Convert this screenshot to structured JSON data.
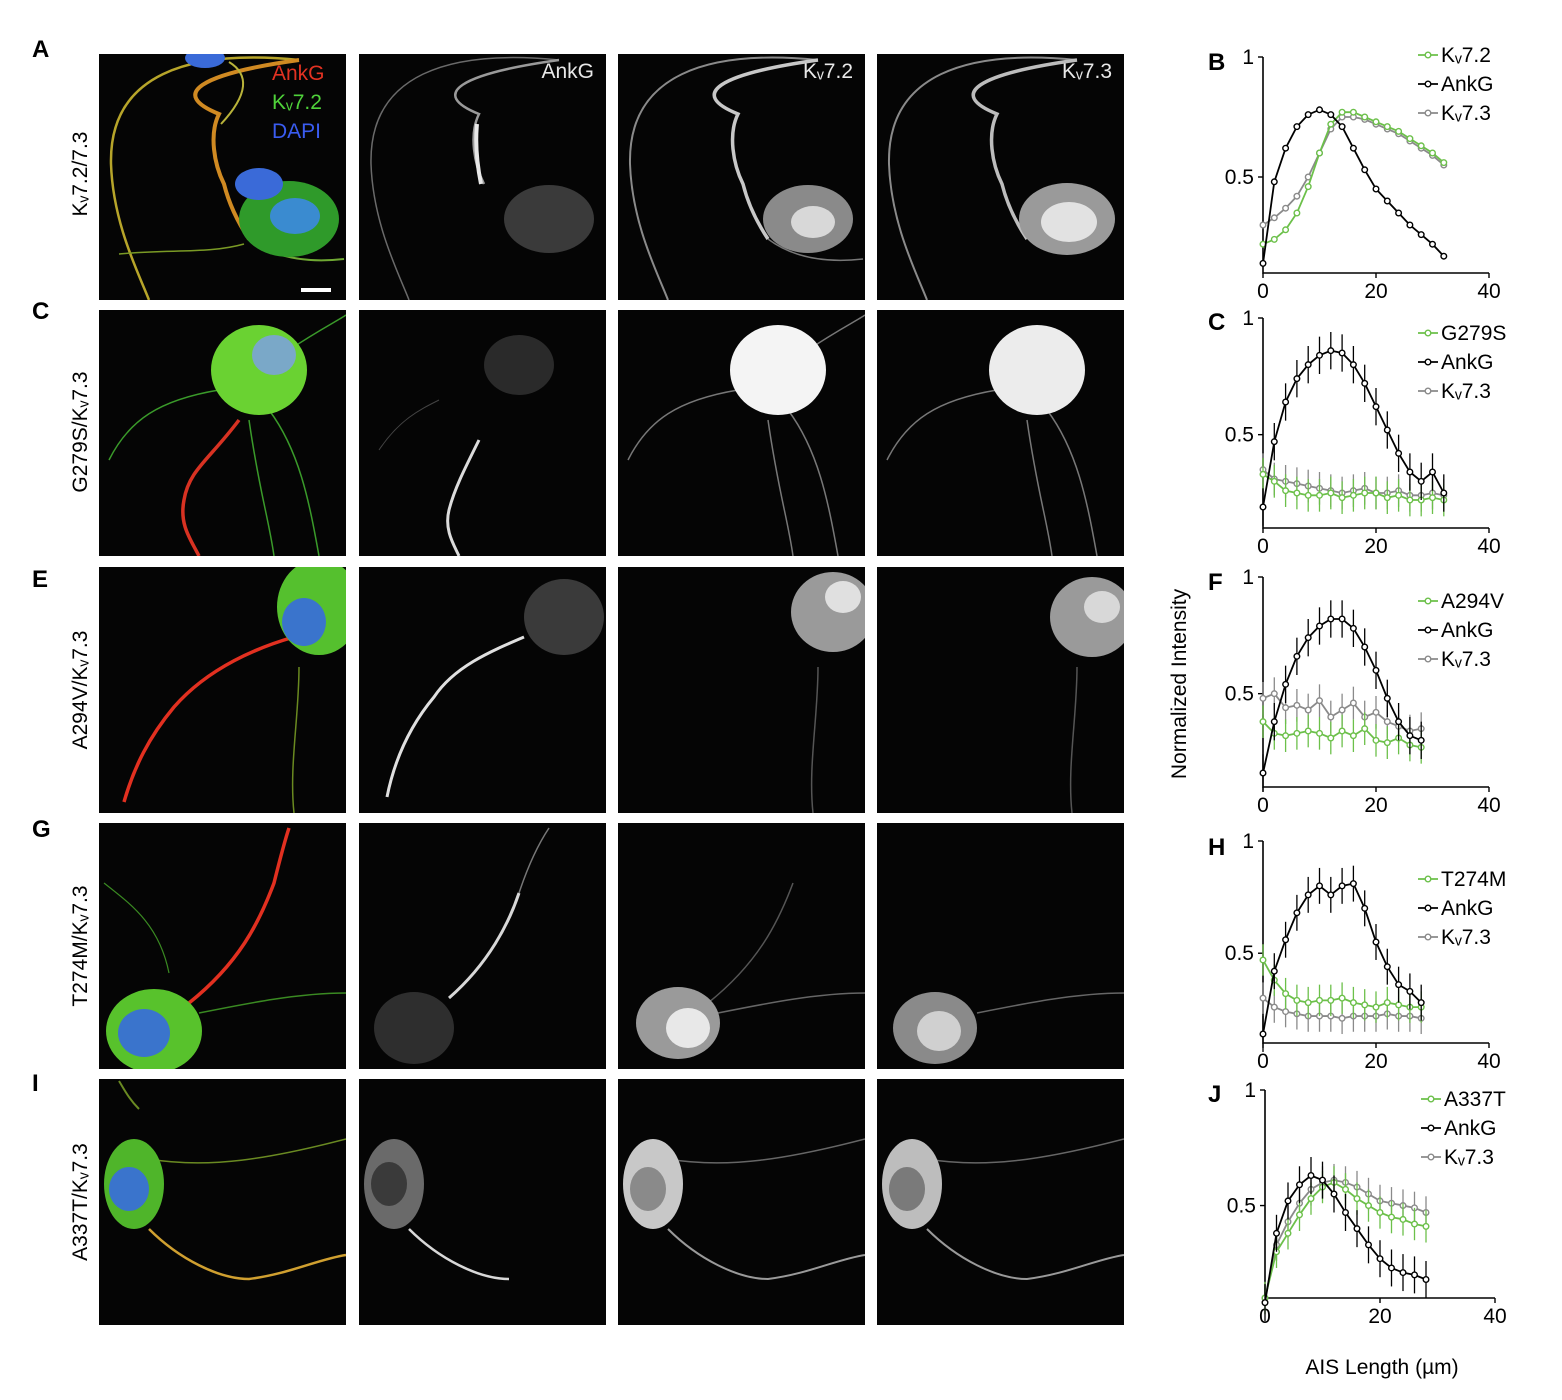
{
  "rows": [
    {
      "letter": "A",
      "label": "Kᵥ7.2/7.3"
    },
    {
      "letter": "C",
      "label": "G279S/Kᵥ7.3"
    },
    {
      "letter": "E",
      "label": "A294V/Kᵥ7.3"
    },
    {
      "letter": "G",
      "label": "T274M/Kᵥ7.3"
    },
    {
      "letter": "I",
      "label": "A337T/Kᵥ7.3"
    }
  ],
  "channel_labels": {
    "ankg": "AnkG",
    "kv72": "Kᵥ7.2",
    "kv73": "Kᵥ7.3"
  },
  "merge_legend": {
    "ankg": "AnkG",
    "kv72": "Kᵥ7.2",
    "dapi": "DAPI"
  },
  "colors": {
    "ankg": "#000000",
    "kv72": "#6cc04a",
    "kv73": "#8a8a8a",
    "red": "#e23222",
    "green": "#4fd23a",
    "blue": "#3a5cf0"
  },
  "axis": {
    "ylabel": "Normalized Intensity",
    "xlabel": "AIS Length (µm)"
  },
  "chart_data": [
    {
      "type": "line",
      "panel": "B",
      "xlim": [
        0,
        40
      ],
      "ylim": [
        0.1,
        1
      ],
      "xticks": [
        0,
        20,
        40
      ],
      "yticks": [
        0.5,
        1
      ],
      "legend": "top-right",
      "series": [
        {
          "name": "Kᵥ7.2",
          "color": "#6cc04a",
          "x": [
            0,
            2,
            4,
            6,
            8,
            10,
            12,
            14,
            16,
            18,
            20,
            22,
            24,
            26,
            28,
            30,
            32
          ],
          "y": [
            0.22,
            0.24,
            0.28,
            0.35,
            0.46,
            0.6,
            0.72,
            0.77,
            0.77,
            0.75,
            0.73,
            0.71,
            0.69,
            0.66,
            0.63,
            0.6,
            0.56
          ]
        },
        {
          "name": "AnkG",
          "color": "#000000",
          "x": [
            0,
            2,
            4,
            6,
            8,
            10,
            12,
            14,
            16,
            18,
            20,
            22,
            24,
            26,
            28,
            30,
            32
          ],
          "y": [
            0.14,
            0.48,
            0.62,
            0.71,
            0.76,
            0.78,
            0.76,
            0.71,
            0.62,
            0.53,
            0.45,
            0.4,
            0.35,
            0.3,
            0.26,
            0.22,
            0.17
          ]
        },
        {
          "name": "Kᵥ7.3",
          "color": "#8a8a8a",
          "x": [
            0,
            2,
            4,
            6,
            8,
            10,
            12,
            14,
            16,
            18,
            20,
            22,
            24,
            26,
            28,
            30,
            32
          ],
          "y": [
            0.3,
            0.33,
            0.37,
            0.42,
            0.5,
            0.6,
            0.7,
            0.75,
            0.75,
            0.74,
            0.72,
            0.7,
            0.68,
            0.65,
            0.62,
            0.59,
            0.55
          ]
        }
      ]
    },
    {
      "type": "line",
      "panel": "C",
      "xlim": [
        0,
        40
      ],
      "ylim": [
        0.1,
        1
      ],
      "xticks": [
        0,
        20,
        40
      ],
      "yticks": [
        0.5,
        1
      ],
      "legend": "top-right",
      "series": [
        {
          "name": "G279S",
          "color": "#6cc04a",
          "x": [
            0,
            2,
            4,
            6,
            8,
            10,
            12,
            14,
            16,
            18,
            20,
            22,
            24,
            26,
            28,
            30,
            32
          ],
          "y": [
            0.33,
            0.3,
            0.26,
            0.25,
            0.24,
            0.24,
            0.25,
            0.23,
            0.24,
            0.25,
            0.25,
            0.23,
            0.24,
            0.22,
            0.22,
            0.23,
            0.22
          ]
        },
        {
          "name": "AnkG",
          "color": "#000000",
          "x": [
            0,
            2,
            4,
            6,
            8,
            10,
            12,
            14,
            16,
            18,
            20,
            22,
            24,
            26,
            28,
            30,
            32
          ],
          "y": [
            0.19,
            0.47,
            0.64,
            0.74,
            0.8,
            0.84,
            0.86,
            0.85,
            0.8,
            0.72,
            0.62,
            0.52,
            0.42,
            0.34,
            0.3,
            0.34,
            0.25
          ]
        },
        {
          "name": "Kᵥ7.3",
          "color": "#8a8a8a",
          "x": [
            0,
            2,
            4,
            6,
            8,
            10,
            12,
            14,
            16,
            18,
            20,
            22,
            24,
            26,
            28,
            30,
            32
          ],
          "y": [
            0.35,
            0.31,
            0.3,
            0.29,
            0.28,
            0.27,
            0.26,
            0.25,
            0.26,
            0.27,
            0.25,
            0.25,
            0.26,
            0.24,
            0.24,
            0.25,
            0.24
          ]
        }
      ]
    },
    {
      "type": "line",
      "panel": "F",
      "xlim": [
        0,
        40
      ],
      "ylim": [
        0.1,
        1
      ],
      "xticks": [
        0,
        20,
        40
      ],
      "yticks": [
        0.5,
        1
      ],
      "legend": "top-right",
      "series": [
        {
          "name": "A294V",
          "color": "#6cc04a",
          "x": [
            0,
            2,
            4,
            6,
            8,
            10,
            12,
            14,
            16,
            18,
            20,
            22,
            24,
            26,
            28
          ],
          "y": [
            0.38,
            0.33,
            0.32,
            0.33,
            0.34,
            0.33,
            0.31,
            0.34,
            0.32,
            0.35,
            0.3,
            0.29,
            0.31,
            0.28,
            0.27
          ]
        },
        {
          "name": "AnkG",
          "color": "#000000",
          "x": [
            0,
            2,
            4,
            6,
            8,
            10,
            12,
            14,
            16,
            18,
            20,
            22,
            24,
            26,
            28
          ],
          "y": [
            0.16,
            0.38,
            0.54,
            0.66,
            0.74,
            0.79,
            0.82,
            0.82,
            0.78,
            0.7,
            0.6,
            0.48,
            0.38,
            0.32,
            0.3
          ]
        },
        {
          "name": "Kᵥ7.3",
          "color": "#8a8a8a",
          "x": [
            0,
            2,
            4,
            6,
            8,
            10,
            12,
            14,
            16,
            18,
            20,
            22,
            24,
            26,
            28
          ],
          "y": [
            0.48,
            0.5,
            0.44,
            0.45,
            0.43,
            0.47,
            0.4,
            0.43,
            0.46,
            0.4,
            0.42,
            0.38,
            0.36,
            0.34,
            0.35
          ]
        }
      ]
    },
    {
      "type": "line",
      "panel": "H",
      "xlim": [
        0,
        40
      ],
      "ylim": [
        0.1,
        1
      ],
      "xticks": [
        0,
        20,
        40
      ],
      "yticks": [
        0.5,
        1
      ],
      "legend": "top-right",
      "series": [
        {
          "name": "T274M",
          "color": "#6cc04a",
          "x": [
            0,
            2,
            4,
            6,
            8,
            10,
            12,
            14,
            16,
            18,
            20,
            22,
            24,
            26,
            28
          ],
          "y": [
            0.47,
            0.38,
            0.32,
            0.29,
            0.28,
            0.29,
            0.29,
            0.3,
            0.28,
            0.27,
            0.26,
            0.28,
            0.27,
            0.26,
            0.26
          ]
        },
        {
          "name": "AnkG",
          "color": "#000000",
          "x": [
            0,
            2,
            4,
            6,
            8,
            10,
            12,
            14,
            16,
            18,
            20,
            22,
            24,
            26,
            28
          ],
          "y": [
            0.14,
            0.42,
            0.56,
            0.68,
            0.76,
            0.8,
            0.76,
            0.8,
            0.81,
            0.7,
            0.55,
            0.44,
            0.36,
            0.33,
            0.28
          ]
        },
        {
          "name": "Kᵥ7.3",
          "color": "#8a8a8a",
          "x": [
            0,
            2,
            4,
            6,
            8,
            10,
            12,
            14,
            16,
            18,
            20,
            22,
            24,
            26,
            28
          ],
          "y": [
            0.3,
            0.26,
            0.24,
            0.23,
            0.22,
            0.22,
            0.22,
            0.21,
            0.22,
            0.22,
            0.22,
            0.23,
            0.22,
            0.22,
            0.21
          ]
        }
      ]
    },
    {
      "type": "line",
      "panel": "J",
      "xlim": [
        0,
        40
      ],
      "ylim": [
        0.1,
        1
      ],
      "xticks": [
        0,
        20,
        40
      ],
      "yticks": [
        0.5,
        1
      ],
      "legend": "top-right",
      "series": [
        {
          "name": "A337T",
          "color": "#6cc04a",
          "x": [
            0,
            2,
            4,
            6,
            8,
            10,
            12,
            14,
            16,
            18,
            20,
            22,
            24,
            26,
            28
          ],
          "y": [
            0.1,
            0.3,
            0.38,
            0.46,
            0.53,
            0.58,
            0.6,
            0.57,
            0.53,
            0.5,
            0.47,
            0.45,
            0.44,
            0.42,
            0.41
          ]
        },
        {
          "name": "AnkG",
          "color": "#000000",
          "x": [
            0,
            2,
            4,
            6,
            8,
            10,
            12,
            14,
            16,
            18,
            20,
            22,
            24,
            26,
            28
          ],
          "y": [
            0.08,
            0.38,
            0.52,
            0.59,
            0.63,
            0.61,
            0.55,
            0.47,
            0.4,
            0.33,
            0.27,
            0.23,
            0.21,
            0.2,
            0.18
          ]
        },
        {
          "name": "Kᵥ7.3",
          "color": "#8a8a8a",
          "x": [
            0,
            2,
            4,
            6,
            8,
            10,
            12,
            14,
            16,
            18,
            20,
            22,
            24,
            26,
            28
          ],
          "y": [
            0.1,
            0.33,
            0.43,
            0.51,
            0.57,
            0.6,
            0.61,
            0.6,
            0.58,
            0.55,
            0.52,
            0.51,
            0.5,
            0.49,
            0.47
          ]
        }
      ]
    }
  ]
}
